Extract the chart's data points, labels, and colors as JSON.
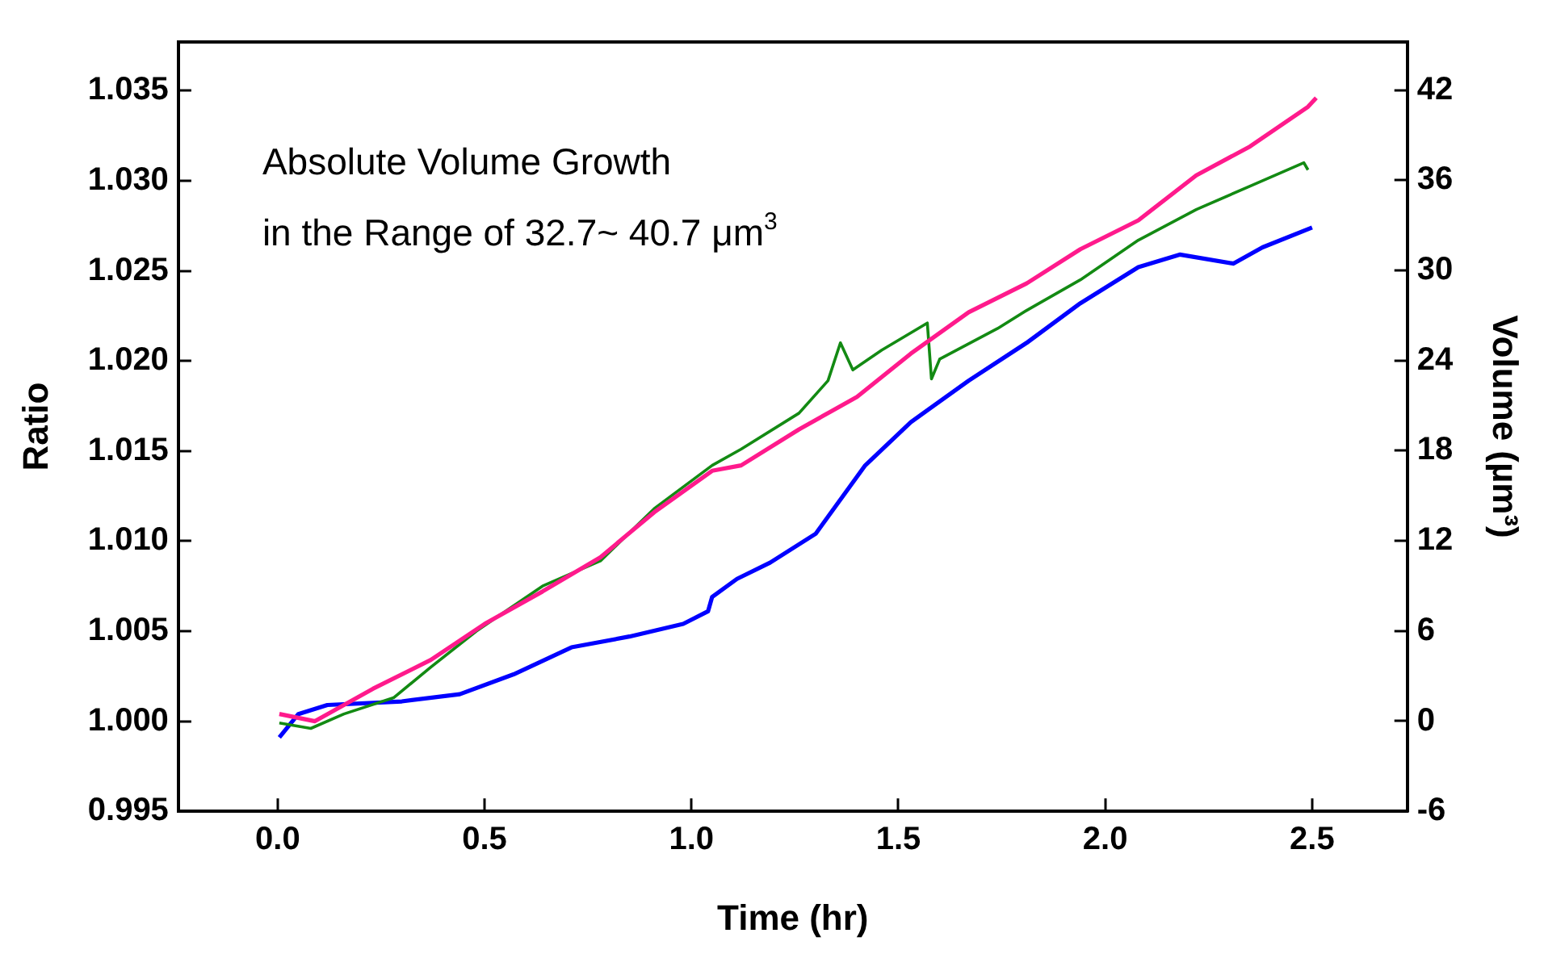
{
  "chart_data": {
    "type": "line",
    "xlabel": "Time (hr)",
    "ylabel": "Ratio",
    "y2label": "Volume (µm³)",
    "annotations": [
      "Absolute Volume Growth",
      "in the Range of 32.7~ 40.7 μm$^{3}$"
    ],
    "xlim": [
      -0.24,
      2.73
    ],
    "xticks": [
      {
        "value": 0,
        "label": "0.0"
      },
      0.5,
      {
        "value": 1,
        "label": "1.0"
      },
      1.5,
      {
        "value": 2,
        "label": "2.0"
      },
      2.5
    ],
    "ylim": [
      0.995,
      1.0377
    ],
    "yticks": [
      0.995,
      {
        "value": 1,
        "label": "1.000"
      },
      1.005,
      {
        "value": 1.01,
        "label": "1.010"
      },
      1.015,
      {
        "value": 1.02,
        "label": "1.020"
      },
      1.025,
      {
        "value": 1.03,
        "label": "1.030"
      },
      1.035
    ],
    "y2lim": [
      -6,
      45.2
    ],
    "y2ticks": [
      -6,
      0,
      6,
      12,
      18,
      24,
      30,
      36,
      42
    ],
    "grid": false,
    "legend": false,
    "marker": "none",
    "line_style": "solid",
    "series": [
      {
        "color": "#ff1a8c",
        "x": [
          0.004,
          0.09,
          0.23,
          0.37,
          0.5,
          0.64,
          0.78,
          0.91,
          1.05,
          1.12,
          1.26,
          1.4,
          1.53,
          1.67,
          1.81,
          1.94,
          2.08,
          2.22,
          2.35,
          2.49,
          2.51
        ],
        "values": [
          1.0004,
          1.0,
          1.0018,
          1.0034,
          1.0054,
          1.0072,
          1.0091,
          1.0116,
          1.0139,
          1.0142,
          1.0162,
          1.018,
          1.0204,
          1.0227,
          1.0243,
          1.0262,
          1.0278,
          1.0303,
          1.0319,
          1.0341,
          1.0346
        ]
      },
      {
        "color": "#138a13",
        "x": [
          0.004,
          0.08,
          0.16,
          0.28,
          0.37,
          0.48,
          0.64,
          0.78,
          0.91,
          1.05,
          1.12,
          1.26,
          1.33,
          1.36,
          1.39,
          1.46,
          1.57,
          1.58,
          1.6,
          1.74,
          1.81,
          1.94,
          2.08,
          2.22,
          2.35,
          2.48,
          2.49
        ],
        "values": [
          0.9999,
          0.9996,
          1.0004,
          1.0013,
          1.003,
          1.005,
          1.0075,
          1.0089,
          1.0118,
          1.0142,
          1.0151,
          1.0171,
          1.0189,
          1.021,
          1.0195,
          1.0206,
          1.0221,
          1.019,
          1.0201,
          1.0218,
          1.0228,
          1.0245,
          1.0267,
          1.0284,
          1.0297,
          1.031,
          1.0306
        ]
      },
      {
        "color": "#0000ff",
        "x": [
          0.004,
          0.05,
          0.12,
          0.3,
          0.44,
          0.57,
          0.71,
          0.85,
          0.98,
          1.04,
          1.05,
          1.11,
          1.19,
          1.3,
          1.42,
          1.53,
          1.67,
          1.81,
          1.94,
          2.08,
          2.18,
          2.31,
          2.38,
          2.5
        ],
        "values": [
          0.9991,
          1.0004,
          1.0009,
          1.0011,
          1.0015,
          1.0026,
          1.0041,
          1.0047,
          1.0054,
          1.0061,
          1.0069,
          1.0079,
          1.0088,
          1.0104,
          1.0142,
          1.0166,
          1.0189,
          1.021,
          1.0232,
          1.0252,
          1.0259,
          1.0254,
          1.0263,
          1.0274
        ]
      }
    ]
  }
}
